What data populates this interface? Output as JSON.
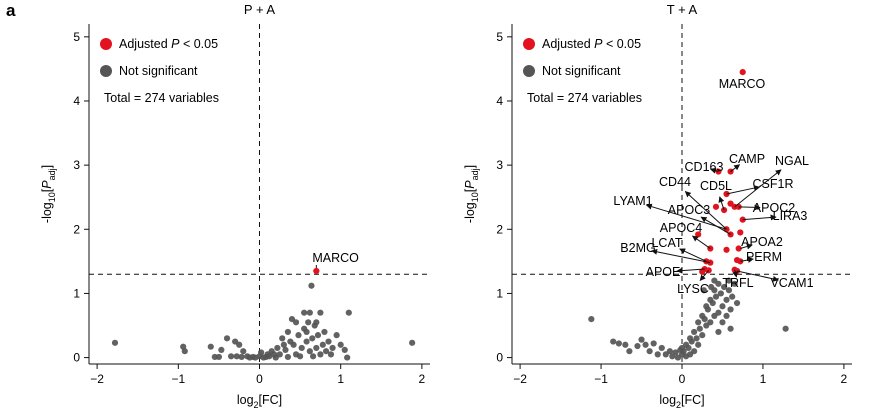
{
  "panel_label": "a",
  "chart_data": [
    {
      "type": "scatter",
      "title": "P + A",
      "xlabel": "log2[FC]",
      "ylabel": "-log10[Padj]",
      "xlim": [
        -2.1,
        2.1
      ],
      "ylim": [
        -0.1,
        5.2
      ],
      "xticks": [
        "−2",
        "−1",
        "0",
        "1",
        "2"
      ],
      "yticks": [
        "0",
        "1",
        "2",
        "3",
        "4",
        "5"
      ],
      "threshold_y": 1.3,
      "vline_x": 0,
      "legend": {
        "placement": "top-left",
        "entries": [
          {
            "label": "Adjusted P < 0.05",
            "color": "#e2131e"
          },
          {
            "label": "Not significant",
            "color": "#555555"
          }
        ],
        "total_text": "Total = 274 variables"
      },
      "series": [
        {
          "name": "Adjusted P < 0.05",
          "color": "#e2131e",
          "points": [
            [
              0.7,
              1.35
            ]
          ],
          "labels": [
            {
              "text": "MARCO",
              "x": 0.7,
              "y": 1.35
            }
          ]
        },
        {
          "name": "Not significant",
          "color": "#555555",
          "points": [
            [
              -1.78,
              0.23
            ],
            [
              1.88,
              0.23
            ],
            [
              -0.94,
              0.17
            ],
            [
              -0.92,
              0.1
            ],
            [
              -0.6,
              0.17
            ],
            [
              -0.55,
              0.01
            ],
            [
              -0.5,
              0.01
            ],
            [
              -0.47,
              0.12
            ],
            [
              -0.4,
              0.3
            ],
            [
              -0.3,
              0.25
            ],
            [
              -0.25,
              0.2
            ],
            [
              -0.2,
              0.1
            ],
            [
              -0.15,
              0.02
            ],
            [
              -0.12,
              0.0
            ],
            [
              -0.08,
              0.01
            ],
            [
              -0.05,
              0.0
            ],
            [
              0.0,
              0.02
            ],
            [
              0.02,
              0.08
            ],
            [
              0.05,
              0.0
            ],
            [
              0.08,
              0.01
            ],
            [
              0.1,
              0.05
            ],
            [
              0.12,
              0.02
            ],
            [
              0.15,
              0.1
            ],
            [
              0.18,
              0.05
            ],
            [
              0.2,
              0.0
            ],
            [
              0.22,
              0.15
            ],
            [
              0.25,
              0.05
            ],
            [
              0.28,
              0.3
            ],
            [
              0.3,
              0.2
            ],
            [
              0.32,
              0.12
            ],
            [
              0.35,
              0.4
            ],
            [
              0.38,
              0.25
            ],
            [
              0.4,
              0.6
            ],
            [
              0.42,
              0.2
            ],
            [
              0.45,
              0.05
            ],
            [
              0.48,
              0.35
            ],
            [
              0.5,
              0.02
            ],
            [
              0.52,
              0.15
            ],
            [
              0.55,
              0.45
            ],
            [
              0.55,
              0.7
            ],
            [
              0.58,
              0.25
            ],
            [
              0.6,
              0.55
            ],
            [
              0.62,
              0.1
            ],
            [
              0.62,
              0.7
            ],
            [
              0.65,
              0.3
            ],
            [
              0.66,
              0.02
            ],
            [
              0.68,
              0.5
            ],
            [
              0.7,
              0.15
            ],
            [
              0.72,
              0.35
            ],
            [
              0.75,
              0.05
            ],
            [
              0.78,
              0.2
            ],
            [
              0.8,
              0.4
            ],
            [
              0.82,
              0.1
            ],
            [
              0.85,
              0.25
            ],
            [
              0.88,
              0.05
            ],
            [
              0.9,
              0.15
            ],
            [
              0.95,
              0.35
            ],
            [
              1.0,
              0.2
            ],
            [
              1.05,
              0.12
            ],
            [
              1.1,
              0.7
            ],
            [
              1.08,
              0.0
            ],
            [
              0.7,
              0.55
            ],
            [
              0.75,
              0.7
            ],
            [
              0.45,
              0.55
            ],
            [
              0.58,
              0.4
            ],
            [
              0.64,
              1.12
            ],
            [
              -0.35,
              0.02
            ],
            [
              -0.28,
              0.02
            ],
            [
              -0.22,
              0.01
            ],
            [
              0.35,
              0.01
            ]
          ],
          "labels": []
        }
      ]
    },
    {
      "type": "scatter",
      "title": "T + A",
      "xlabel": "log2[FC]",
      "ylabel": "-log10[Padj]",
      "xlim": [
        -2.1,
        2.1
      ],
      "ylim": [
        -0.1,
        5.2
      ],
      "xticks": [
        "−2",
        "−1",
        "0",
        "1",
        "2"
      ],
      "yticks": [
        "0",
        "1",
        "2",
        "3",
        "4",
        "5"
      ],
      "threshold_y": 1.3,
      "vline_x": 0,
      "legend": {
        "placement": "top-left",
        "entries": [
          {
            "label": "Adjusted P < 0.05",
            "color": "#e2131e"
          },
          {
            "label": "Not significant",
            "color": "#555555"
          }
        ],
        "total_text": "Total = 274 variables"
      },
      "series": [
        {
          "name": "Adjusted P < 0.05",
          "color": "#e2131e",
          "points": [
            [
              0.75,
              4.45
            ],
            [
              0.45,
              2.9
            ],
            [
              0.6,
              2.9
            ],
            [
              0.55,
              2.55
            ],
            [
              0.42,
              2.35
            ],
            [
              0.6,
              2.4
            ],
            [
              0.65,
              2.35
            ],
            [
              0.7,
              2.35
            ],
            [
              0.52,
              2.3
            ],
            [
              0.75,
              2.15
            ],
            [
              0.55,
              2.0
            ],
            [
              0.6,
              1.92
            ],
            [
              0.72,
              1.95
            ],
            [
              0.2,
              1.92
            ],
            [
              0.35,
              1.7
            ],
            [
              0.55,
              1.68
            ],
            [
              0.7,
              1.7
            ],
            [
              0.3,
              1.5
            ],
            [
              0.35,
              1.48
            ],
            [
              0.68,
              1.52
            ],
            [
              0.72,
              1.5
            ],
            [
              0.28,
              1.38
            ],
            [
              0.33,
              1.36
            ],
            [
              0.65,
              1.37
            ],
            [
              0.68,
              1.35
            ],
            [
              0.25,
              1.34
            ]
          ],
          "labels": [
            {
              "text": "MARCO",
              "x": 0.75,
              "y": 4.45
            },
            {
              "text": "CAMP",
              "x": 0.6,
              "y": 2.9
            },
            {
              "text": "NGAL",
              "x": 0.65,
              "y": 2.35
            },
            {
              "text": "CD163",
              "x": 0.45,
              "y": 2.9
            },
            {
              "text": "CSF1R",
              "x": 0.55,
              "y": 2.55
            },
            {
              "text": "CD44",
              "x": 0.55,
              "y": 2.0
            },
            {
              "text": "CD5L",
              "x": 0.52,
              "y": 2.3
            },
            {
              "text": "APOC2",
              "x": 0.7,
              "y": 2.35
            },
            {
              "text": "LYAM1",
              "x": 0.55,
              "y": 2.0
            },
            {
              "text": "LIRA3",
              "x": 0.75,
              "y": 2.15
            },
            {
              "text": "APOC3",
              "x": 0.6,
              "y": 1.92
            },
            {
              "text": "APOC4",
              "x": 0.35,
              "y": 1.7
            },
            {
              "text": "APOA2",
              "x": 0.72,
              "y": 1.7
            },
            {
              "text": "LCAT",
              "x": 0.3,
              "y": 1.5
            },
            {
              "text": "B2MG",
              "x": 0.35,
              "y": 1.48
            },
            {
              "text": "PERM",
              "x": 0.72,
              "y": 1.5
            },
            {
              "text": "APOE",
              "x": 0.28,
              "y": 1.38
            },
            {
              "text": "TRFL",
              "x": 0.65,
              "y": 1.37
            },
            {
              "text": "VCAM1",
              "x": 0.68,
              "y": 1.35
            },
            {
              "text": "LYSC",
              "x": 0.33,
              "y": 1.36
            }
          ]
        },
        {
          "name": "Not significant",
          "color": "#555555",
          "points": [
            [
              -1.12,
              0.6
            ],
            [
              1.28,
              0.45
            ],
            [
              -0.85,
              0.25
            ],
            [
              -0.78,
              0.22
            ],
            [
              -0.7,
              0.2
            ],
            [
              -0.65,
              0.1
            ],
            [
              -0.55,
              0.18
            ],
            [
              -0.5,
              0.28
            ],
            [
              -0.45,
              0.2
            ],
            [
              -0.4,
              0.1
            ],
            [
              -0.35,
              0.22
            ],
            [
              -0.3,
              0.05
            ],
            [
              -0.25,
              0.15
            ],
            [
              -0.2,
              0.05
            ],
            [
              -0.15,
              0.1
            ],
            [
              -0.12,
              0.02
            ],
            [
              -0.08,
              0.08
            ],
            [
              -0.05,
              0.0
            ],
            [
              0.0,
              0.05
            ],
            [
              0.02,
              0.1
            ],
            [
              0.05,
              0.02
            ],
            [
              0.08,
              0.15
            ],
            [
              0.1,
              0.05
            ],
            [
              0.12,
              0.25
            ],
            [
              0.15,
              0.1
            ],
            [
              0.18,
              0.3
            ],
            [
              0.2,
              0.2
            ],
            [
              0.22,
              0.45
            ],
            [
              0.25,
              0.35
            ],
            [
              0.28,
              0.6
            ],
            [
              0.3,
              0.5
            ],
            [
              0.32,
              0.75
            ],
            [
              0.35,
              0.55
            ],
            [
              0.38,
              0.85
            ],
            [
              0.4,
              0.65
            ],
            [
              0.42,
              0.95
            ],
            [
              0.45,
              0.7
            ],
            [
              0.48,
              1.0
            ],
            [
              0.5,
              0.8
            ],
            [
              0.52,
              1.1
            ],
            [
              0.55,
              0.9
            ],
            [
              0.58,
              1.05
            ],
            [
              0.6,
              0.75
            ],
            [
              0.62,
              0.95
            ],
            [
              0.65,
              1.15
            ],
            [
              0.68,
              0.85
            ],
            [
              0.35,
              0.9
            ],
            [
              0.4,
              1.05
            ],
            [
              0.3,
              0.8
            ],
            [
              0.25,
              0.65
            ],
            [
              0.2,
              0.55
            ],
            [
              0.15,
              0.4
            ],
            [
              0.1,
              0.3
            ],
            [
              0.45,
              0.4
            ],
            [
              0.5,
              0.55
            ],
            [
              0.55,
              0.65
            ],
            [
              0.6,
              0.45
            ],
            [
              0.05,
              0.2
            ],
            [
              -0.02,
              0.12
            ],
            [
              0.0,
              0.15
            ],
            [
              0.27,
              1.05
            ],
            [
              0.4,
              1.2
            ],
            [
              0.58,
              1.2
            ],
            [
              0.45,
              1.15
            ],
            [
              0.36,
              1.1
            ]
          ],
          "labels": []
        }
      ]
    }
  ]
}
